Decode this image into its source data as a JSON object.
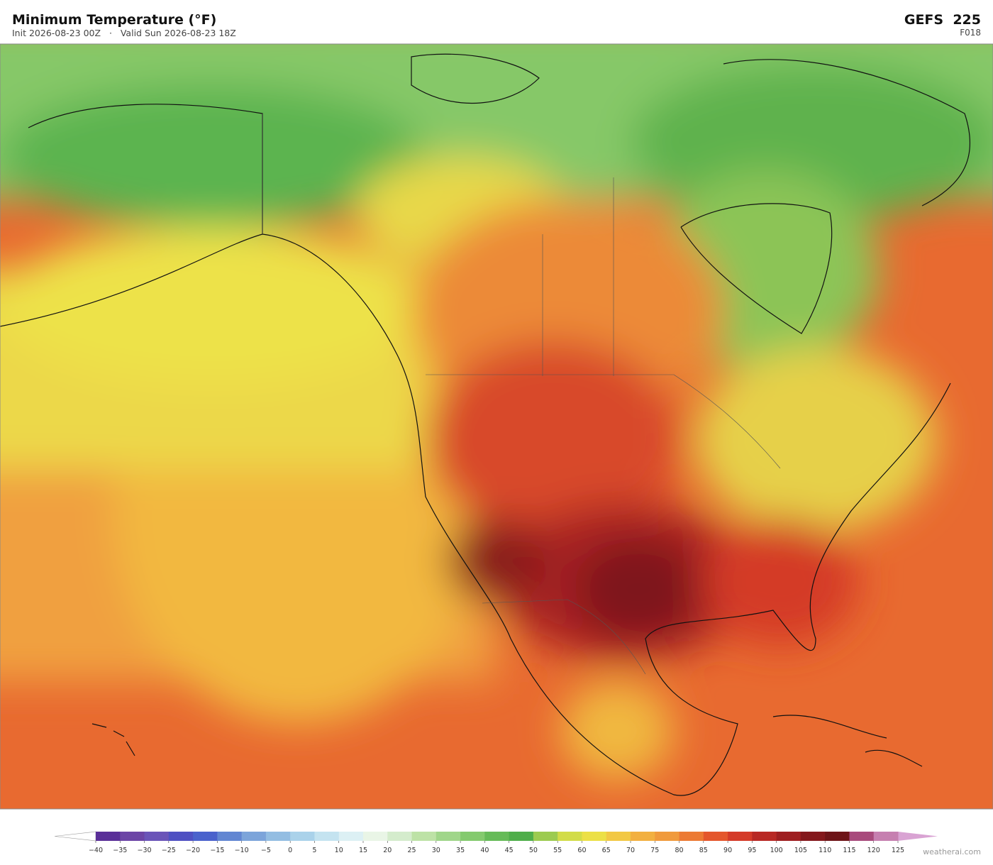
{
  "header": {
    "title": "Minimum Temperature  (°F)",
    "subtitle": "Init 2026-08-23 00Z   ·   Valid Sun 2026-08-23 18Z",
    "model": "GEFS  225",
    "forecast_hour": "F018"
  },
  "colorbar": {
    "ticks": [
      {
        "value": -40,
        "label": "−40"
      },
      {
        "value": -35,
        "label": "−35"
      },
      {
        "value": -30,
        "label": "−30"
      },
      {
        "value": -25,
        "label": "−25"
      },
      {
        "value": -20,
        "label": "−20"
      },
      {
        "value": -15,
        "label": "−15"
      },
      {
        "value": -10,
        "label": "−10"
      },
      {
        "value": -5,
        "label": "−5"
      },
      0,
      5,
      10,
      15,
      20,
      25,
      30,
      35,
      40,
      45,
      50,
      55,
      60,
      65,
      70,
      75,
      80,
      85,
      90,
      95,
      100,
      105,
      110,
      115,
      120,
      125
    ],
    "colors": [
      "#5a2f98",
      "#6c45a6",
      "#6a54b8",
      "#4f50c2",
      "#4a62cc",
      "#6286d2",
      "#7ca4da",
      "#93bde2",
      "#aad2ea",
      "#c4e3f0",
      "#dcf0f4",
      "#e9f5e6",
      "#d4eccc",
      "#bde2a6",
      "#a0d68a",
      "#84ca6e",
      "#66bb58",
      "#4fae4a",
      "#9ccb50",
      "#d2dc48",
      "#ece046",
      "#f2c844",
      "#f2b040",
      "#f09a3c",
      "#ec7a34",
      "#e4562c",
      "#d43a28",
      "#b82824",
      "#9e1e20",
      "#84181c",
      "#6e1418",
      "#a84a7c",
      "#c67fb0"
    ],
    "under_color": "#ffffff",
    "over_color": "#d9a3d3"
  },
  "watermark": "weatherai.com"
}
